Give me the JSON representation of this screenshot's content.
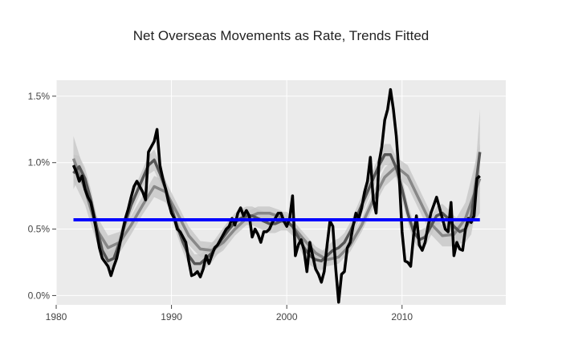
{
  "chart_data": {
    "type": "line",
    "title": "Net Overseas Movements as Rate, Trends Fitted",
    "xlabel": "",
    "ylabel": "",
    "xlim": [
      1980,
      2019
    ],
    "ylim": [
      -0.07,
      1.62
    ],
    "x_ticks": [
      1980,
      1990,
      2000,
      2010
    ],
    "y_ticks": [
      0.0,
      0.5,
      1.0,
      1.5
    ],
    "y_tick_labels": [
      "0.0%",
      "0.5%",
      "1.0%",
      "1.5%"
    ],
    "grid": true,
    "legend": "none",
    "colors": {
      "plot_background": "#ebebeb",
      "grid": "#ffffff",
      "observed": "#000000",
      "trend_fit": "#888888",
      "smooth_fit": "#555555",
      "band": "#c4c4c4",
      "mean_line": "#0000ff"
    },
    "series": [
      {
        "role": "observed",
        "x": [
          1981.5,
          1981.75,
          1982.0,
          1982.25,
          1982.5,
          1982.75,
          1983.0,
          1983.25,
          1983.5,
          1983.75,
          1984.0,
          1984.25,
          1984.5,
          1984.75,
          1985.0,
          1985.25,
          1985.5,
          1985.75,
          1986.0,
          1986.25,
          1986.5,
          1986.75,
          1987.0,
          1987.25,
          1987.5,
          1987.75,
          1988.0,
          1988.25,
          1988.5,
          1988.75,
          1989.0,
          1989.25,
          1989.5,
          1989.75,
          1990.0,
          1990.25,
          1990.5,
          1990.75,
          1991.0,
          1991.25,
          1991.5,
          1991.75,
          1992.0,
          1992.25,
          1992.5,
          1992.75,
          1993.0,
          1993.25,
          1993.5,
          1993.75,
          1994.0,
          1994.25,
          1994.5,
          1994.75,
          1995.0,
          1995.25,
          1995.5,
          1995.75,
          1996.0,
          1996.25,
          1996.5,
          1996.75,
          1997.0,
          1997.25,
          1997.5,
          1997.75,
          1998.0,
          1998.25,
          1998.5,
          1998.75,
          1999.0,
          1999.25,
          1999.5,
          1999.75,
          2000.0,
          2000.25,
          2000.5,
          2000.75,
          2001.0,
          2001.25,
          2001.5,
          2001.75,
          2002.0,
          2002.25,
          2002.5,
          2002.75,
          2003.0,
          2003.25,
          2003.5,
          2003.75,
          2004.0,
          2004.25,
          2004.5,
          2004.75,
          2005.0,
          2005.25,
          2005.5,
          2005.75,
          2006.0,
          2006.25,
          2006.5,
          2006.75,
          2007.0,
          2007.25,
          2007.5,
          2007.75,
          2008.0,
          2008.25,
          2008.5,
          2008.75,
          2009.0,
          2009.25,
          2009.5,
          2009.75,
          2010.0,
          2010.25,
          2010.5,
          2010.75,
          2011.0,
          2011.25,
          2011.5,
          2011.75,
          2012.0,
          2012.25,
          2012.5,
          2012.75,
          2013.0,
          2013.25,
          2013.5,
          2013.75,
          2014.0,
          2014.25,
          2014.5,
          2014.75,
          2015.0,
          2015.25,
          2015.5,
          2015.75,
          2016.0,
          2016.25,
          2016.5,
          2016.75
        ],
        "values": [
          0.98,
          0.93,
          0.86,
          0.9,
          0.8,
          0.74,
          0.7,
          0.6,
          0.48,
          0.36,
          0.28,
          0.25,
          0.22,
          0.15,
          0.22,
          0.28,
          0.38,
          0.48,
          0.58,
          0.65,
          0.74,
          0.82,
          0.86,
          0.82,
          0.78,
          0.72,
          1.08,
          1.12,
          1.16,
          1.25,
          0.98,
          0.88,
          0.8,
          0.7,
          0.62,
          0.58,
          0.5,
          0.48,
          0.44,
          0.4,
          0.26,
          0.15,
          0.16,
          0.18,
          0.14,
          0.2,
          0.3,
          0.24,
          0.3,
          0.36,
          0.38,
          0.42,
          0.46,
          0.5,
          0.52,
          0.58,
          0.53,
          0.62,
          0.66,
          0.6,
          0.64,
          0.6,
          0.44,
          0.5,
          0.46,
          0.4,
          0.48,
          0.48,
          0.5,
          0.55,
          0.58,
          0.62,
          0.62,
          0.56,
          0.52,
          0.58,
          0.75,
          0.3,
          0.38,
          0.42,
          0.34,
          0.18,
          0.4,
          0.3,
          0.2,
          0.16,
          0.1,
          0.18,
          0.38,
          0.56,
          0.52,
          0.2,
          -0.05,
          0.16,
          0.18,
          0.36,
          0.4,
          0.52,
          0.62,
          0.58,
          0.66,
          0.78,
          0.86,
          1.04,
          0.72,
          0.62,
          1.0,
          1.12,
          1.32,
          1.4,
          1.55,
          1.4,
          1.2,
          0.9,
          0.48,
          0.26,
          0.25,
          0.22,
          0.45,
          0.6,
          0.38,
          0.34,
          0.4,
          0.52,
          0.62,
          0.68,
          0.74,
          0.66,
          0.58,
          0.5,
          0.48,
          0.7,
          0.3,
          0.4,
          0.35,
          0.34,
          0.5,
          0.58,
          0.55,
          0.6,
          0.88,
          0.9
        ]
      },
      {
        "role": "trend_fit",
        "x": [
          1981.5,
          1982.5,
          1983.5,
          1984.5,
          1985.5,
          1986.5,
          1987.5,
          1988.5,
          1989.5,
          1990.5,
          1991.5,
          1992.5,
          1993.5,
          1994.5,
          1995.5,
          1996.5,
          1997.5,
          1998.5,
          1999.5,
          2000.5,
          2001.5,
          2002.5,
          2003.5,
          2004.5,
          2005.5,
          2006.5,
          2007.5,
          2008.5,
          2009.5,
          2010.5,
          2011.5,
          2012.5,
          2013.5,
          2014.5,
          2015.5,
          2016.75
        ],
        "values": [
          1.03,
          0.8,
          0.5,
          0.36,
          0.4,
          0.53,
          0.68,
          0.82,
          0.78,
          0.62,
          0.45,
          0.35,
          0.34,
          0.4,
          0.5,
          0.58,
          0.62,
          0.62,
          0.59,
          0.52,
          0.42,
          0.32,
          0.27,
          0.29,
          0.38,
          0.53,
          0.72,
          0.89,
          0.97,
          0.9,
          0.72,
          0.54,
          0.45,
          0.46,
          0.58,
          0.88
        ],
        "band_lower": [
          0.86,
          0.68,
          0.4,
          0.27,
          0.32,
          0.46,
          0.61,
          0.74,
          0.7,
          0.55,
          0.38,
          0.29,
          0.28,
          0.34,
          0.45,
          0.53,
          0.57,
          0.57,
          0.54,
          0.47,
          0.37,
          0.27,
          0.22,
          0.24,
          0.33,
          0.48,
          0.66,
          0.82,
          0.9,
          0.82,
          0.64,
          0.46,
          0.37,
          0.37,
          0.46,
          0.62
        ],
        "band_upper": [
          1.2,
          0.92,
          0.6,
          0.45,
          0.48,
          0.6,
          0.75,
          0.9,
          0.86,
          0.69,
          0.52,
          0.41,
          0.4,
          0.46,
          0.55,
          0.63,
          0.67,
          0.67,
          0.64,
          0.57,
          0.47,
          0.37,
          0.32,
          0.34,
          0.43,
          0.58,
          0.78,
          0.96,
          1.04,
          0.98,
          0.8,
          0.62,
          0.53,
          0.55,
          0.7,
          1.14
        ]
      },
      {
        "role": "smooth_fit",
        "x": [
          1981.5,
          1982.0,
          1982.5,
          1983.0,
          1983.5,
          1984.0,
          1984.5,
          1985.0,
          1985.5,
          1986.0,
          1986.5,
          1987.0,
          1987.5,
          1988.0,
          1988.5,
          1989.0,
          1989.5,
          1990.0,
          1990.5,
          1991.0,
          1991.5,
          1992.0,
          1992.5,
          1993.0,
          1993.5,
          1994.0,
          1994.5,
          1995.0,
          1995.5,
          1996.0,
          1996.5,
          1997.0,
          1997.5,
          1998.0,
          1998.5,
          1999.0,
          1999.5,
          2000.0,
          2000.5,
          2001.0,
          2001.5,
          2002.0,
          2002.5,
          2003.0,
          2003.5,
          2004.0,
          2004.5,
          2005.0,
          2005.5,
          2006.0,
          2006.5,
          2007.0,
          2007.5,
          2008.0,
          2008.5,
          2009.0,
          2009.5,
          2010.0,
          2010.5,
          2011.0,
          2011.5,
          2012.0,
          2012.5,
          2013.0,
          2013.5,
          2014.0,
          2014.5,
          2015.0,
          2015.5,
          2016.0,
          2016.5,
          2016.75
        ],
        "values": [
          0.92,
          0.97,
          0.88,
          0.72,
          0.52,
          0.34,
          0.26,
          0.28,
          0.4,
          0.55,
          0.68,
          0.78,
          0.88,
          0.98,
          1.02,
          0.92,
          0.8,
          0.66,
          0.52,
          0.4,
          0.3,
          0.24,
          0.24,
          0.28,
          0.32,
          0.38,
          0.44,
          0.5,
          0.55,
          0.58,
          0.6,
          0.6,
          0.58,
          0.56,
          0.54,
          0.54,
          0.56,
          0.56,
          0.52,
          0.44,
          0.36,
          0.3,
          0.27,
          0.26,
          0.3,
          0.34,
          0.36,
          0.4,
          0.48,
          0.58,
          0.68,
          0.78,
          0.88,
          0.98,
          1.06,
          1.06,
          0.96,
          0.8,
          0.62,
          0.48,
          0.42,
          0.44,
          0.52,
          0.6,
          0.62,
          0.58,
          0.52,
          0.48,
          0.5,
          0.6,
          0.9,
          1.08
        ],
        "band_lower": [
          0.8,
          0.89,
          0.8,
          0.64,
          0.44,
          0.27,
          0.19,
          0.21,
          0.33,
          0.48,
          0.61,
          0.71,
          0.81,
          0.91,
          0.94,
          0.85,
          0.73,
          0.59,
          0.45,
          0.33,
          0.23,
          0.17,
          0.17,
          0.21,
          0.25,
          0.31,
          0.37,
          0.43,
          0.48,
          0.51,
          0.53,
          0.53,
          0.51,
          0.49,
          0.47,
          0.47,
          0.49,
          0.49,
          0.45,
          0.37,
          0.29,
          0.23,
          0.2,
          0.19,
          0.23,
          0.27,
          0.29,
          0.33,
          0.41,
          0.51,
          0.61,
          0.71,
          0.81,
          0.91,
          0.98,
          0.98,
          0.88,
          0.72,
          0.55,
          0.41,
          0.35,
          0.37,
          0.45,
          0.53,
          0.55,
          0.51,
          0.44,
          0.39,
          0.4,
          0.46,
          0.7,
          0.8
        ],
        "band_upper": [
          1.06,
          1.05,
          0.96,
          0.8,
          0.6,
          0.41,
          0.33,
          0.35,
          0.47,
          0.62,
          0.75,
          0.85,
          0.95,
          1.05,
          1.1,
          0.99,
          0.87,
          0.73,
          0.59,
          0.47,
          0.37,
          0.31,
          0.31,
          0.35,
          0.39,
          0.45,
          0.51,
          0.57,
          0.62,
          0.65,
          0.67,
          0.67,
          0.65,
          0.63,
          0.61,
          0.61,
          0.63,
          0.63,
          0.59,
          0.51,
          0.43,
          0.37,
          0.34,
          0.33,
          0.37,
          0.41,
          0.43,
          0.47,
          0.55,
          0.65,
          0.75,
          0.85,
          0.95,
          1.05,
          1.14,
          1.14,
          1.04,
          0.88,
          0.69,
          0.55,
          0.49,
          0.51,
          0.59,
          0.67,
          0.69,
          0.65,
          0.6,
          0.57,
          0.6,
          0.74,
          1.1,
          1.4
        ]
      },
      {
        "role": "mean_line",
        "x": [
          1981.5,
          2016.75
        ],
        "values": [
          0.57,
          0.57
        ]
      }
    ]
  }
}
